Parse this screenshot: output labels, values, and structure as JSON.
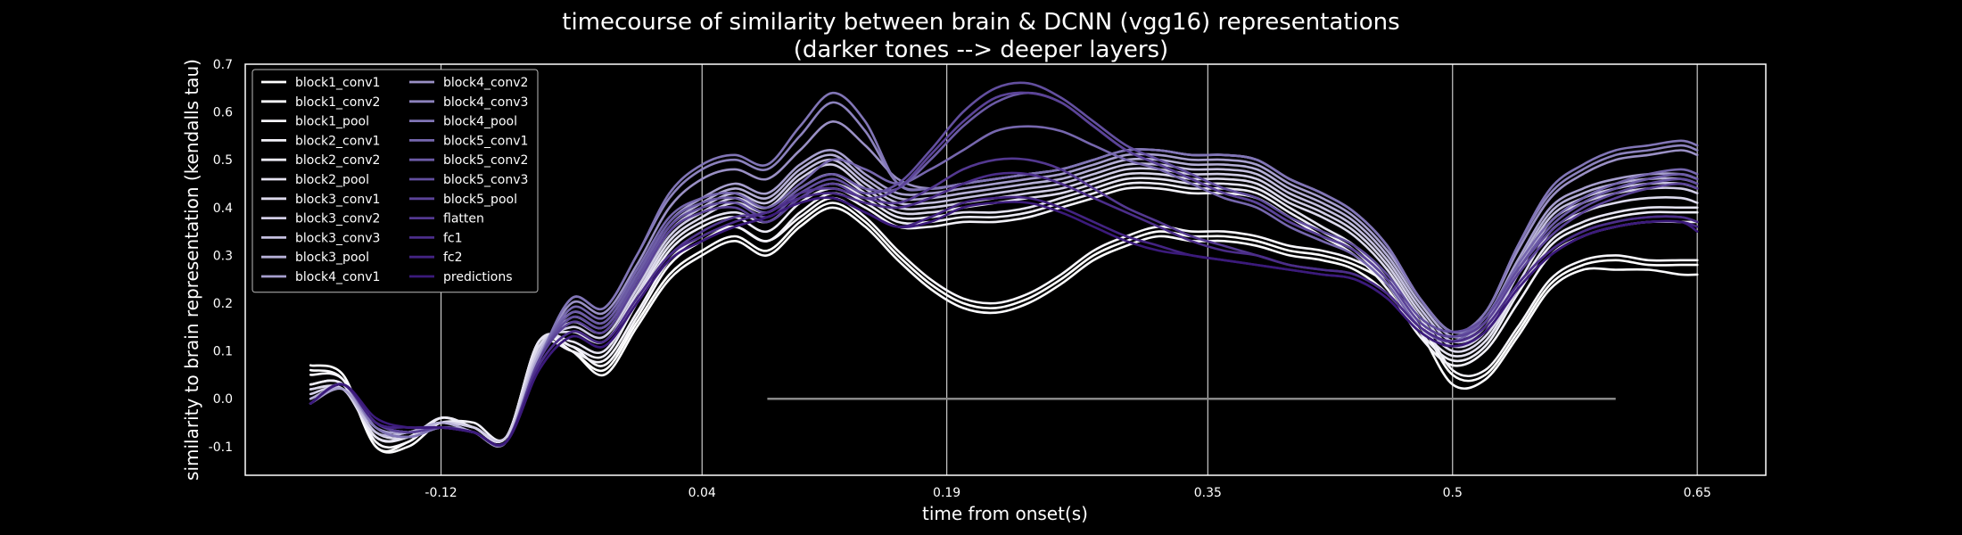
{
  "chart_data": {
    "type": "line",
    "title": "timecourse of similarity between brain & DCNN (vgg16) representations",
    "subtitle": "(darker tones --> deeper layers)",
    "xlabel": "time from onset(s)",
    "ylabel": "similarity to brain representation (kendalls tau)",
    "xlim": [
      -0.24,
      0.692
    ],
    "ylim": [
      -0.16,
      0.7
    ],
    "x_ticks": [
      -0.12,
      0.04,
      0.19,
      0.35,
      0.5,
      0.65
    ],
    "x_tick_labels": [
      "-0.12",
      "0.04",
      "0.19",
      "0.35",
      "0.5",
      "0.65"
    ],
    "y_ticks": [
      -0.1,
      0.0,
      0.1,
      0.2,
      0.3,
      0.4,
      0.5,
      0.6,
      0.7
    ],
    "y_tick_labels": [
      "-0.1",
      "0.0",
      "0.1",
      "0.2",
      "0.3",
      "0.4",
      "0.5",
      "0.6",
      "0.7"
    ],
    "grid": "vertical",
    "legend_position": "top-left",
    "legend_columns": 2,
    "baseline": {
      "x": [
        0.08,
        0.6
      ],
      "y": 0.0,
      "color": "#888888"
    },
    "x": [
      -0.2,
      -0.18,
      -0.16,
      -0.14,
      -0.12,
      -0.1,
      -0.08,
      -0.06,
      -0.04,
      -0.02,
      0.0,
      0.02,
      0.04,
      0.06,
      0.08,
      0.1,
      0.12,
      0.14,
      0.16,
      0.18,
      0.2,
      0.22,
      0.24,
      0.26,
      0.28,
      0.3,
      0.32,
      0.34,
      0.36,
      0.38,
      0.4,
      0.42,
      0.44,
      0.46,
      0.48,
      0.5,
      0.52,
      0.54,
      0.56,
      0.58,
      0.6,
      0.62,
      0.64,
      0.65
    ],
    "series": [
      {
        "name": "block1_conv1",
        "color": "#ffffff",
        "values": [
          0.07,
          0.05,
          -0.1,
          -0.09,
          -0.04,
          -0.06,
          -0.08,
          0.12,
          0.1,
          0.06,
          0.16,
          0.26,
          0.31,
          0.34,
          0.31,
          0.37,
          0.41,
          0.37,
          0.3,
          0.24,
          0.2,
          0.19,
          0.21,
          0.25,
          0.3,
          0.33,
          0.35,
          0.34,
          0.34,
          0.33,
          0.31,
          0.3,
          0.28,
          0.24,
          0.16,
          0.05,
          0.05,
          0.14,
          0.24,
          0.28,
          0.29,
          0.28,
          0.28,
          0.28
        ]
      },
      {
        "name": "block1_conv2",
        "color": "#fbfbfd",
        "values": [
          0.06,
          0.04,
          -0.1,
          -0.1,
          -0.05,
          -0.06,
          -0.08,
          0.12,
          0.1,
          0.05,
          0.15,
          0.25,
          0.3,
          0.33,
          0.3,
          0.36,
          0.4,
          0.36,
          0.29,
          0.23,
          0.19,
          0.18,
          0.2,
          0.24,
          0.29,
          0.32,
          0.34,
          0.33,
          0.33,
          0.32,
          0.3,
          0.29,
          0.27,
          0.22,
          0.14,
          0.03,
          0.04,
          0.13,
          0.23,
          0.27,
          0.27,
          0.27,
          0.26,
          0.26
        ]
      },
      {
        "name": "block1_pool",
        "color": "#f7f6fb",
        "values": [
          0.05,
          0.04,
          -0.09,
          -0.09,
          -0.04,
          -0.06,
          -0.08,
          0.12,
          0.11,
          0.07,
          0.17,
          0.28,
          0.33,
          0.36,
          0.33,
          0.38,
          0.42,
          0.38,
          0.31,
          0.25,
          0.21,
          0.2,
          0.22,
          0.26,
          0.31,
          0.34,
          0.36,
          0.35,
          0.35,
          0.34,
          0.32,
          0.31,
          0.29,
          0.25,
          0.17,
          0.06,
          0.06,
          0.15,
          0.25,
          0.29,
          0.3,
          0.29,
          0.29,
          0.29
        ]
      },
      {
        "name": "block2_conv1",
        "color": "#f2f1f8",
        "values": [
          0.03,
          0.03,
          -0.08,
          -0.08,
          -0.05,
          -0.05,
          -0.08,
          0.11,
          0.1,
          0.08,
          0.18,
          0.29,
          0.34,
          0.36,
          0.33,
          0.39,
          0.43,
          0.4,
          0.36,
          0.36,
          0.37,
          0.37,
          0.38,
          0.4,
          0.42,
          0.44,
          0.44,
          0.43,
          0.43,
          0.42,
          0.38,
          0.34,
          0.3,
          0.23,
          0.13,
          0.07,
          0.1,
          0.2,
          0.3,
          0.34,
          0.36,
          0.37,
          0.37,
          0.37
        ]
      },
      {
        "name": "block2_conv2",
        "color": "#ecebf5",
        "values": [
          0.03,
          0.03,
          -0.08,
          -0.08,
          -0.04,
          -0.06,
          -0.08,
          0.12,
          0.11,
          0.09,
          0.2,
          0.31,
          0.36,
          0.38,
          0.35,
          0.41,
          0.44,
          0.41,
          0.37,
          0.37,
          0.38,
          0.38,
          0.39,
          0.41,
          0.43,
          0.45,
          0.45,
          0.44,
          0.44,
          0.43,
          0.39,
          0.35,
          0.31,
          0.24,
          0.14,
          0.08,
          0.11,
          0.22,
          0.32,
          0.36,
          0.38,
          0.39,
          0.39,
          0.39
        ]
      },
      {
        "name": "block2_pool",
        "color": "#e5e3f1",
        "values": [
          0.02,
          0.02,
          -0.08,
          -0.08,
          -0.05,
          -0.06,
          -0.08,
          0.12,
          0.12,
          0.1,
          0.21,
          0.32,
          0.37,
          0.39,
          0.37,
          0.42,
          0.45,
          0.42,
          0.38,
          0.38,
          0.39,
          0.39,
          0.4,
          0.42,
          0.44,
          0.46,
          0.46,
          0.45,
          0.45,
          0.44,
          0.4,
          0.36,
          0.32,
          0.25,
          0.15,
          0.09,
          0.12,
          0.23,
          0.33,
          0.37,
          0.39,
          0.4,
          0.4,
          0.4
        ]
      },
      {
        "name": "block3_conv1",
        "color": "#dcd9ec",
        "values": [
          0.02,
          0.02,
          -0.07,
          -0.08,
          -0.05,
          -0.06,
          -0.08,
          0.11,
          0.14,
          0.12,
          0.22,
          0.33,
          0.38,
          0.41,
          0.39,
          0.44,
          0.47,
          0.43,
          0.39,
          0.39,
          0.4,
          0.41,
          0.42,
          0.43,
          0.45,
          0.47,
          0.47,
          0.46,
          0.46,
          0.45,
          0.41,
          0.38,
          0.34,
          0.27,
          0.17,
          0.1,
          0.13,
          0.24,
          0.35,
          0.39,
          0.41,
          0.42,
          0.42,
          0.41
        ]
      },
      {
        "name": "block3_conv2",
        "color": "#d1cde6",
        "values": [
          0.01,
          0.02,
          -0.07,
          -0.07,
          -0.05,
          -0.06,
          -0.08,
          0.1,
          0.15,
          0.13,
          0.23,
          0.34,
          0.39,
          0.42,
          0.4,
          0.46,
          0.49,
          0.44,
          0.4,
          0.4,
          0.41,
          0.42,
          0.43,
          0.44,
          0.46,
          0.48,
          0.48,
          0.47,
          0.47,
          0.46,
          0.42,
          0.39,
          0.35,
          0.28,
          0.18,
          0.11,
          0.14,
          0.26,
          0.37,
          0.41,
          0.43,
          0.44,
          0.44,
          0.43
        ]
      },
      {
        "name": "block3_conv3",
        "color": "#c4bfdf",
        "values": [
          0.0,
          0.02,
          -0.07,
          -0.07,
          -0.05,
          -0.07,
          -0.09,
          0.1,
          0.16,
          0.14,
          0.24,
          0.35,
          0.4,
          0.43,
          0.41,
          0.47,
          0.5,
          0.45,
          0.41,
          0.41,
          0.42,
          0.43,
          0.44,
          0.45,
          0.47,
          0.49,
          0.49,
          0.48,
          0.48,
          0.47,
          0.43,
          0.4,
          0.36,
          0.29,
          0.19,
          0.12,
          0.15,
          0.27,
          0.38,
          0.42,
          0.44,
          0.45,
          0.45,
          0.44
        ]
      },
      {
        "name": "block3_pool",
        "color": "#b6b0d7",
        "values": [
          0.0,
          0.02,
          -0.06,
          -0.07,
          -0.05,
          -0.07,
          -0.09,
          0.09,
          0.17,
          0.15,
          0.25,
          0.36,
          0.41,
          0.44,
          0.42,
          0.48,
          0.51,
          0.46,
          0.42,
          0.42,
          0.43,
          0.44,
          0.45,
          0.46,
          0.48,
          0.5,
          0.5,
          0.49,
          0.49,
          0.48,
          0.44,
          0.41,
          0.37,
          0.3,
          0.2,
          0.13,
          0.16,
          0.28,
          0.39,
          0.43,
          0.45,
          0.46,
          0.46,
          0.45
        ]
      },
      {
        "name": "block4_conv1",
        "color": "#a79fce",
        "values": [
          -0.01,
          0.02,
          -0.06,
          -0.07,
          -0.06,
          -0.07,
          -0.09,
          0.09,
          0.18,
          0.16,
          0.26,
          0.37,
          0.42,
          0.45,
          0.43,
          0.49,
          0.52,
          0.47,
          0.43,
          0.43,
          0.44,
          0.45,
          0.46,
          0.47,
          0.49,
          0.51,
          0.51,
          0.5,
          0.5,
          0.49,
          0.45,
          0.42,
          0.38,
          0.31,
          0.21,
          0.14,
          0.17,
          0.29,
          0.4,
          0.44,
          0.46,
          0.47,
          0.47,
          0.46
        ]
      },
      {
        "name": "block4_conv2",
        "color": "#9a90c5",
        "values": [
          -0.01,
          0.03,
          -0.06,
          -0.08,
          -0.06,
          -0.07,
          -0.09,
          0.08,
          0.2,
          0.18,
          0.28,
          0.4,
          0.46,
          0.48,
          0.46,
          0.52,
          0.58,
          0.53,
          0.46,
          0.44,
          0.45,
          0.46,
          0.47,
          0.48,
          0.5,
          0.52,
          0.52,
          0.51,
          0.51,
          0.5,
          0.46,
          0.43,
          0.39,
          0.32,
          0.21,
          0.14,
          0.18,
          0.31,
          0.42,
          0.47,
          0.5,
          0.51,
          0.52,
          0.51
        ]
      },
      {
        "name": "block4_conv3",
        "color": "#8c82bd",
        "values": [
          -0.01,
          0.03,
          -0.06,
          -0.08,
          -0.06,
          -0.07,
          -0.09,
          0.08,
          0.21,
          0.19,
          0.3,
          0.42,
          0.48,
          0.5,
          0.48,
          0.55,
          0.62,
          0.56,
          0.45,
          0.44,
          0.45,
          0.46,
          0.47,
          0.48,
          0.5,
          0.52,
          0.52,
          0.51,
          0.51,
          0.5,
          0.46,
          0.43,
          0.39,
          0.32,
          0.21,
          0.14,
          0.18,
          0.32,
          0.43,
          0.48,
          0.51,
          0.52,
          0.53,
          0.52
        ]
      },
      {
        "name": "block4_pool",
        "color": "#8175b6",
        "values": [
          -0.01,
          0.03,
          -0.06,
          -0.08,
          -0.06,
          -0.07,
          -0.09,
          0.08,
          0.21,
          0.19,
          0.3,
          0.43,
          0.49,
          0.51,
          0.49,
          0.57,
          0.64,
          0.58,
          0.45,
          0.44,
          0.45,
          0.46,
          0.47,
          0.48,
          0.5,
          0.52,
          0.52,
          0.51,
          0.51,
          0.5,
          0.46,
          0.43,
          0.39,
          0.32,
          0.21,
          0.14,
          0.18,
          0.32,
          0.44,
          0.49,
          0.52,
          0.53,
          0.54,
          0.53
        ]
      },
      {
        "name": "block5_conv1",
        "color": "#7667ae",
        "values": [
          -0.01,
          0.03,
          -0.05,
          -0.07,
          -0.06,
          -0.07,
          -0.09,
          0.08,
          0.19,
          0.17,
          0.27,
          0.38,
          0.42,
          0.43,
          0.4,
          0.45,
          0.5,
          0.48,
          0.45,
          0.48,
          0.52,
          0.56,
          0.57,
          0.56,
          0.53,
          0.5,
          0.48,
          0.45,
          0.42,
          0.4,
          0.36,
          0.33,
          0.3,
          0.24,
          0.15,
          0.12,
          0.17,
          0.28,
          0.37,
          0.42,
          0.45,
          0.47,
          0.48,
          0.47
        ]
      },
      {
        "name": "block5_conv2",
        "color": "#6c5ba6",
        "values": [
          -0.01,
          0.03,
          -0.05,
          -0.07,
          -0.06,
          -0.07,
          -0.09,
          0.08,
          0.18,
          0.16,
          0.26,
          0.37,
          0.41,
          0.42,
          0.39,
          0.44,
          0.47,
          0.44,
          0.44,
          0.5,
          0.57,
          0.62,
          0.64,
          0.62,
          0.57,
          0.52,
          0.49,
          0.46,
          0.43,
          0.41,
          0.37,
          0.34,
          0.31,
          0.25,
          0.16,
          0.13,
          0.17,
          0.27,
          0.36,
          0.41,
          0.44,
          0.46,
          0.47,
          0.46
        ]
      },
      {
        "name": "block5_conv3",
        "color": "#634f9f",
        "values": [
          -0.01,
          0.03,
          -0.05,
          -0.07,
          -0.06,
          -0.07,
          -0.09,
          0.08,
          0.17,
          0.15,
          0.25,
          0.36,
          0.4,
          0.41,
          0.38,
          0.43,
          0.46,
          0.43,
          0.45,
          0.52,
          0.6,
          0.65,
          0.66,
          0.63,
          0.58,
          0.53,
          0.5,
          0.47,
          0.44,
          0.42,
          0.38,
          0.35,
          0.32,
          0.26,
          0.17,
          0.14,
          0.17,
          0.27,
          0.35,
          0.4,
          0.43,
          0.45,
          0.46,
          0.45
        ]
      },
      {
        "name": "block5_pool",
        "color": "#5b4398",
        "values": [
          -0.01,
          0.03,
          -0.05,
          -0.07,
          -0.06,
          -0.07,
          -0.09,
          0.08,
          0.16,
          0.14,
          0.24,
          0.35,
          0.39,
          0.4,
          0.37,
          0.42,
          0.45,
          0.42,
          0.44,
          0.51,
          0.58,
          0.63,
          0.64,
          0.62,
          0.57,
          0.52,
          0.49,
          0.46,
          0.43,
          0.41,
          0.37,
          0.34,
          0.31,
          0.25,
          0.16,
          0.13,
          0.16,
          0.26,
          0.34,
          0.39,
          0.42,
          0.44,
          0.45,
          0.44
        ]
      },
      {
        "name": "flatten",
        "color": "#533890",
        "values": [
          -0.01,
          0.03,
          -0.05,
          -0.06,
          -0.06,
          -0.07,
          -0.09,
          0.07,
          0.14,
          0.12,
          0.21,
          0.3,
          0.35,
          0.38,
          0.39,
          0.43,
          0.44,
          0.42,
          0.41,
          0.44,
          0.48,
          0.5,
          0.5,
          0.48,
          0.44,
          0.4,
          0.37,
          0.34,
          0.32,
          0.3,
          0.28,
          0.27,
          0.26,
          0.22,
          0.15,
          0.12,
          0.15,
          0.24,
          0.31,
          0.35,
          0.37,
          0.38,
          0.38,
          0.37
        ]
      },
      {
        "name": "fc1",
        "color": "#4b2d89",
        "values": [
          -0.01,
          0.03,
          -0.05,
          -0.06,
          -0.06,
          -0.07,
          -0.09,
          0.07,
          0.14,
          0.12,
          0.21,
          0.3,
          0.34,
          0.37,
          0.39,
          0.42,
          0.43,
          0.41,
          0.4,
          0.42,
          0.45,
          0.47,
          0.47,
          0.45,
          0.42,
          0.39,
          0.36,
          0.33,
          0.31,
          0.3,
          0.28,
          0.27,
          0.26,
          0.22,
          0.15,
          0.12,
          0.15,
          0.24,
          0.31,
          0.35,
          0.37,
          0.38,
          0.38,
          0.37
        ]
      },
      {
        "name": "fc2",
        "color": "#432382",
        "values": [
          -0.01,
          0.03,
          -0.05,
          -0.06,
          -0.06,
          -0.07,
          -0.09,
          0.06,
          0.13,
          0.11,
          0.2,
          0.29,
          0.33,
          0.36,
          0.38,
          0.41,
          0.42,
          0.39,
          0.36,
          0.38,
          0.41,
          0.42,
          0.42,
          0.4,
          0.37,
          0.34,
          0.32,
          0.3,
          0.29,
          0.28,
          0.27,
          0.26,
          0.25,
          0.21,
          0.14,
          0.11,
          0.14,
          0.23,
          0.3,
          0.34,
          0.36,
          0.37,
          0.37,
          0.36
        ]
      },
      {
        "name": "predictions",
        "color": "#3b1a7b",
        "values": [
          -0.01,
          0.03,
          -0.04,
          -0.06,
          -0.06,
          -0.07,
          -0.09,
          0.06,
          0.13,
          0.11,
          0.2,
          0.29,
          0.33,
          0.36,
          0.38,
          0.41,
          0.42,
          0.39,
          0.36,
          0.37,
          0.4,
          0.41,
          0.41,
          0.39,
          0.36,
          0.33,
          0.31,
          0.3,
          0.29,
          0.28,
          0.27,
          0.26,
          0.25,
          0.21,
          0.14,
          0.11,
          0.14,
          0.23,
          0.3,
          0.34,
          0.36,
          0.37,
          0.37,
          0.35
        ]
      }
    ]
  }
}
